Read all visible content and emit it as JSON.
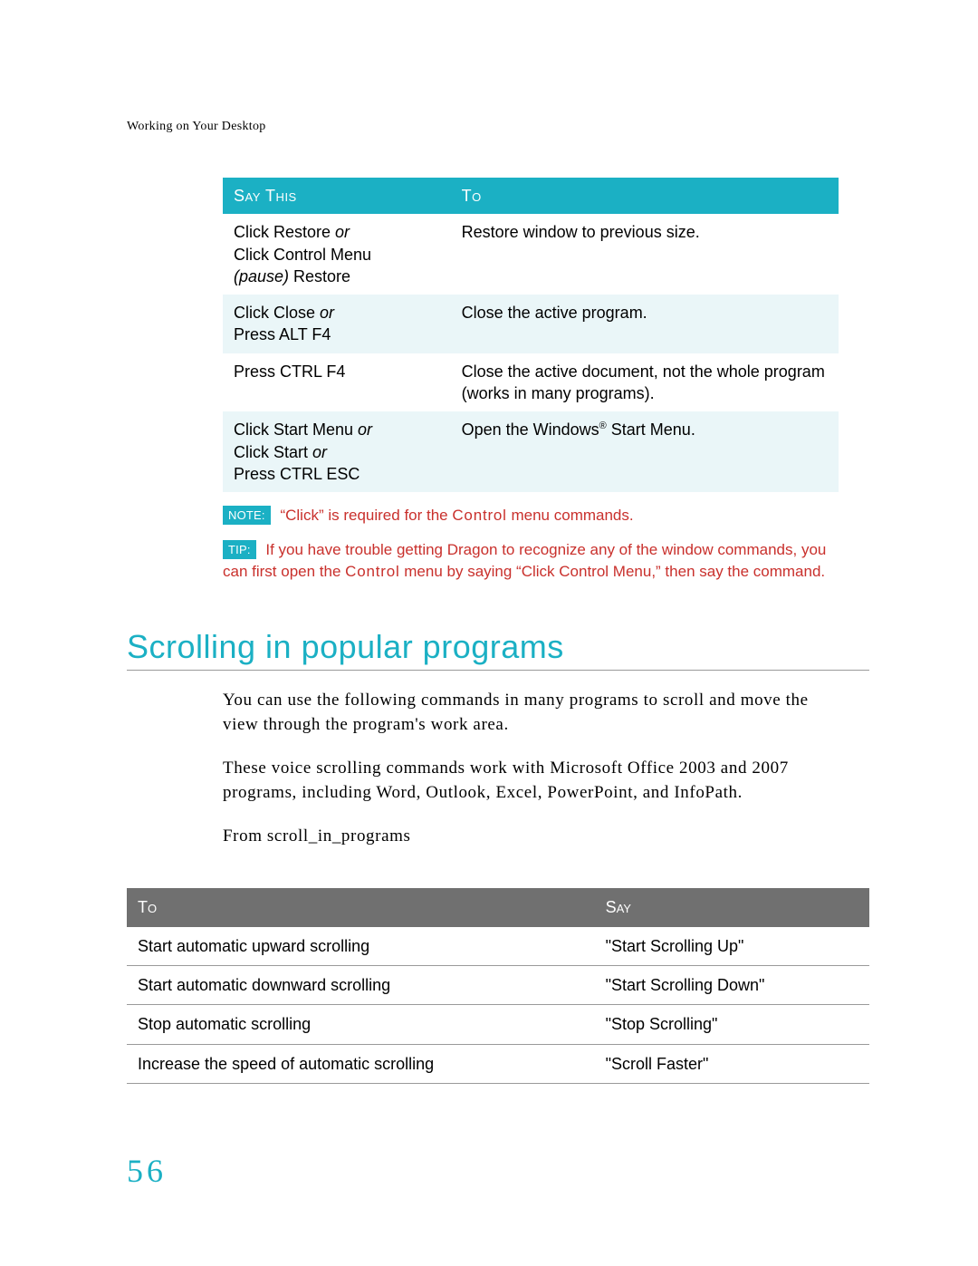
{
  "colors": {
    "teal": "#1bb0c4",
    "teal_pale": "#eaf6f8",
    "gray_header": "#707070",
    "gray_rule": "#9a9a9a",
    "red": "#c9302c",
    "black": "#000000",
    "white": "#ffffff"
  },
  "running_head": "Working on Your Desktop",
  "cmd_table": {
    "headers": {
      "say": "Say This",
      "to": "To"
    },
    "row_bg": [
      "#ffffff",
      "#eaf6f8",
      "#ffffff",
      "#eaf6f8"
    ],
    "rows": [
      {
        "say_html": "Click Restore <span class=\"italic\">or</span><br>Click Control Menu<br><span class=\"italic\">(pause)</span> Restore",
        "to_html": "Restore window to previous size."
      },
      {
        "say_html": "Click Close <span class=\"italic\">or</span><br>Press ALT F4",
        "to_html": "Close the active program."
      },
      {
        "say_html": "Press CTRL F4",
        "to_html": "Close the active document, not the whole program (works in many programs)."
      },
      {
        "say_html": "Click Start Menu <span class=\"italic\">or</span><br>Click Start <span class=\"italic\">or</span><br>Press CTRL ESC",
        "to_html": "Open the Windows<span class=\"sup\">®</span> Start Menu."
      }
    ]
  },
  "note": {
    "badge": "NOTE:",
    "text_html": "“Click” is required for the <span style=\"letter-spacing:0.8px\">Control</span> menu commands."
  },
  "tip": {
    "badge": "TIP:",
    "text_html": "If you have trouble getting Dragon to recognize any of the window commands, you can first open the <span style=\"letter-spacing:0.8px\">Control</span> menu by saying “Click Control Menu,” then say the command."
  },
  "section_heading": "Scrolling in popular programs",
  "para1": "You can use the following commands in many programs to scroll and move the view through the program's work area.",
  "para2": "These voice scrolling commands work with Microsoft Office 2003 and 2007 programs, including Word, Outlook, Excel, PowerPoint, and InfoPath.",
  "para3": "From scroll_in_programs",
  "scroll_table": {
    "headers": {
      "to": "To",
      "say": "Say"
    },
    "border_color": "#9a9a9a",
    "rows": [
      {
        "to": "Start automatic upward scrolling",
        "say": "\"Start Scrolling Up\""
      },
      {
        "to": "Start automatic downward scrolling",
        "say": "\"Start Scrolling Down\""
      },
      {
        "to": "Stop automatic scrolling",
        "say": "\"Stop Scrolling\""
      },
      {
        "to": "Increase the speed of automatic scrolling",
        "say": "\"Scroll Faster\""
      }
    ]
  },
  "page_number": "56"
}
